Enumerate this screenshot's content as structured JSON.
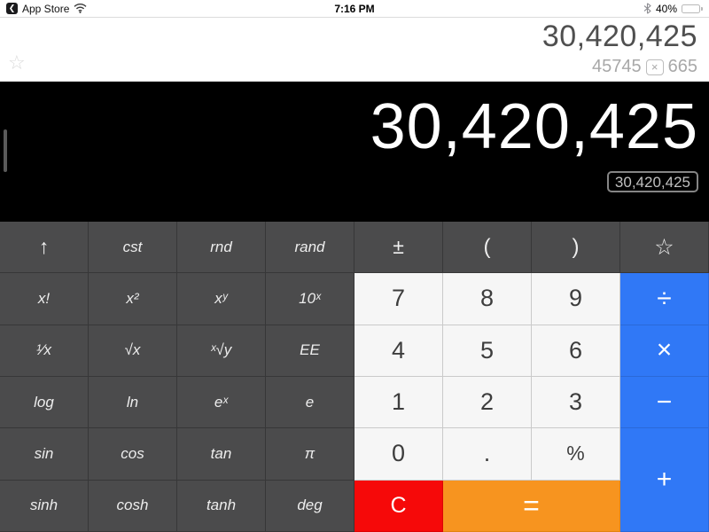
{
  "status_bar": {
    "back_app": "App Store",
    "time": "7:16 PM",
    "battery_percent": "40%"
  },
  "icons": {
    "back_chevron": "❮",
    "star_outline": "☆"
  },
  "header": {
    "result": "30,420,425",
    "expression_left": "45745",
    "expression_op": "×",
    "expression_right": "665"
  },
  "display": {
    "value": "30,420,425",
    "tag": "30,420,425"
  },
  "colors": {
    "dark_key": "#4b4b4c",
    "light_key": "#f6f6f6",
    "operator_blue": "#3078f6",
    "clear_red": "#f60909",
    "equals_orange": "#f7941f",
    "display_bg": "#000000"
  },
  "keypad": {
    "buttons": [
      {
        "name": "shift",
        "label": "↑",
        "kind": "sci",
        "cls": "glyph"
      },
      {
        "name": "cst",
        "label": "cst",
        "kind": "sci"
      },
      {
        "name": "rnd",
        "label": "rnd",
        "kind": "sci"
      },
      {
        "name": "rand",
        "label": "rand",
        "kind": "sci"
      },
      {
        "name": "plus-minus",
        "label": "±",
        "kind": "sci",
        "cls": "glyph"
      },
      {
        "name": "paren-open",
        "label": "(",
        "kind": "sci",
        "cls": "paren"
      },
      {
        "name": "paren-close",
        "label": ")",
        "kind": "sci",
        "cls": "paren"
      },
      {
        "name": "favorite",
        "label": "☆",
        "kind": "sci",
        "cls": "star"
      },
      {
        "name": "factorial",
        "label": "x!",
        "kind": "sci"
      },
      {
        "name": "x-squared",
        "label": "x²",
        "kind": "sci"
      },
      {
        "name": "x-pow-y",
        "label": "xʸ",
        "kind": "sci"
      },
      {
        "name": "10-pow-x",
        "label": "10ˣ",
        "kind": "sci"
      },
      {
        "name": "7",
        "label": "7",
        "kind": "num"
      },
      {
        "name": "8",
        "label": "8",
        "kind": "num"
      },
      {
        "name": "9",
        "label": "9",
        "kind": "num"
      },
      {
        "name": "divide",
        "label": "÷",
        "kind": "blue"
      },
      {
        "name": "reciprocal",
        "label": "¹⁄x",
        "kind": "sci"
      },
      {
        "name": "sqrt",
        "label": "√x",
        "kind": "sci"
      },
      {
        "name": "y-root",
        "label": "ˣ√y",
        "kind": "sci"
      },
      {
        "name": "ee",
        "label": "EE",
        "kind": "sci"
      },
      {
        "name": "4",
        "label": "4",
        "kind": "num"
      },
      {
        "name": "5",
        "label": "5",
        "kind": "num"
      },
      {
        "name": "6",
        "label": "6",
        "kind": "num"
      },
      {
        "name": "multiply",
        "label": "×",
        "kind": "blue"
      },
      {
        "name": "log",
        "label": "log",
        "kind": "sci"
      },
      {
        "name": "ln",
        "label": "ln",
        "kind": "sci"
      },
      {
        "name": "e-pow-x",
        "label": "eˣ",
        "kind": "sci"
      },
      {
        "name": "e",
        "label": "e",
        "kind": "sci"
      },
      {
        "name": "1",
        "label": "1",
        "kind": "num"
      },
      {
        "name": "2",
        "label": "2",
        "kind": "num"
      },
      {
        "name": "3",
        "label": "3",
        "kind": "num"
      },
      {
        "name": "subtract",
        "label": "−",
        "kind": "blue"
      },
      {
        "name": "sin",
        "label": "sin",
        "kind": "sci"
      },
      {
        "name": "cos",
        "label": "cos",
        "kind": "sci"
      },
      {
        "name": "tan",
        "label": "tan",
        "kind": "sci"
      },
      {
        "name": "pi",
        "label": "π",
        "kind": "sci"
      },
      {
        "name": "0",
        "label": "0",
        "kind": "num"
      },
      {
        "name": "decimal",
        "label": ".",
        "kind": "num"
      },
      {
        "name": "percent",
        "label": "%",
        "kind": "num",
        "cls": "pct"
      },
      {
        "name": "add",
        "label": "+",
        "kind": "blue",
        "rowspan": 2
      },
      {
        "name": "sinh",
        "label": "sinh",
        "kind": "sci"
      },
      {
        "name": "cosh",
        "label": "cosh",
        "kind": "sci"
      },
      {
        "name": "tanh",
        "label": "tanh",
        "kind": "sci"
      },
      {
        "name": "deg",
        "label": "deg",
        "kind": "sci"
      },
      {
        "name": "clear",
        "label": "C",
        "kind": "red"
      },
      {
        "name": "equals",
        "label": "=",
        "kind": "orange",
        "cls": "eq",
        "colspan": 2
      }
    ]
  }
}
